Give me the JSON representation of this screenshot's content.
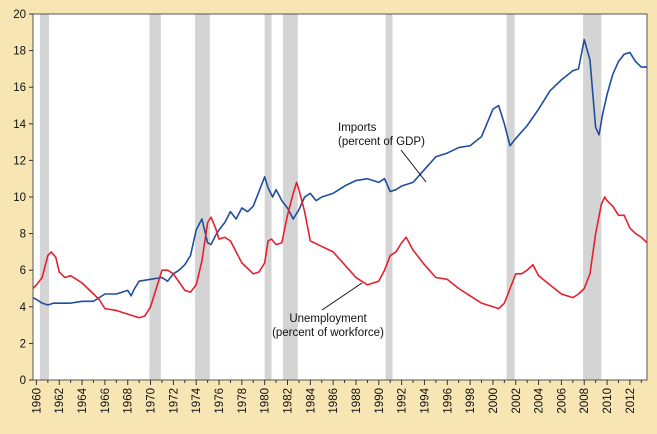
{
  "chart_data": {
    "type": "line",
    "xlim": [
      1959.7,
      2013.5
    ],
    "ylim": [
      0,
      20
    ],
    "yticks": [
      0,
      2,
      4,
      6,
      8,
      10,
      12,
      14,
      16,
      18,
      20
    ],
    "xticks": [
      "1960",
      "1962",
      "1964",
      "1966",
      "1968",
      "1970",
      "1972",
      "1974",
      "1976",
      "1978",
      "1980",
      "1982",
      "1984",
      "1986",
      "1988",
      "1990",
      "1992",
      "1994",
      "1996",
      "1998",
      "2000",
      "2002",
      "2004",
      "2006",
      "2008",
      "2010",
      "2012"
    ],
    "recessions": [
      [
        1960.3,
        1961.1
      ],
      [
        1969.9,
        1970.9
      ],
      [
        1973.9,
        1975.2
      ],
      [
        1980.0,
        1980.6
      ],
      [
        1981.6,
        1982.9
      ],
      [
        1990.6,
        1991.2
      ],
      [
        2001.2,
        2001.9
      ],
      [
        2007.9,
        2009.5
      ]
    ],
    "colors": {
      "recession": "#d4d4d4",
      "imports": "#1f4e9c",
      "unemployment": "#e3212f",
      "background": "#f7e6b4"
    },
    "annotations": {
      "imports": [
        "Imports",
        "(percent of GDP)"
      ],
      "unemployment": [
        "Unemployment",
        "(percent of workforce)"
      ]
    },
    "series": [
      {
        "key": "imports",
        "name": "Imports (percent of GDP)",
        "x": [
          1959.7,
          1960.0,
          1960.5,
          1961.0,
          1961.5,
          1962.0,
          1963.0,
          1964.0,
          1965.0,
          1966.0,
          1967.0,
          1968.0,
          1968.3,
          1968.6,
          1969.0,
          1970.0,
          1971.0,
          1971.5,
          1972.0,
          1972.5,
          1973.0,
          1973.5,
          1974.0,
          1974.5,
          1975.0,
          1975.3,
          1975.7,
          1976.0,
          1976.5,
          1977.0,
          1977.5,
          1978.0,
          1978.5,
          1979.0,
          1979.5,
          1980.0,
          1980.3,
          1980.7,
          1981.0,
          1981.5,
          1982.0,
          1982.5,
          1983.0,
          1983.5,
          1984.0,
          1984.5,
          1985.0,
          1986.0,
          1987.0,
          1988.0,
          1989.0,
          1990.0,
          1990.5,
          1991.0,
          1991.5,
          1992.0,
          1993.0,
          1994.0,
          1995.0,
          1996.0,
          1997.0,
          1998.0,
          1999.0,
          2000.0,
          2000.5,
          2001.0,
          2001.5,
          2002.0,
          2003.0,
          2004.0,
          2005.0,
          2006.0,
          2007.0,
          2007.5,
          2008.0,
          2008.5,
          2009.0,
          2009.3,
          2009.6,
          2010.0,
          2010.5,
          2011.0,
          2011.5,
          2012.0,
          2012.5,
          2013.0,
          2013.5
        ],
        "values": [
          4.5,
          4.4,
          4.2,
          4.1,
          4.2,
          4.2,
          4.2,
          4.3,
          4.3,
          4.7,
          4.7,
          4.9,
          4.6,
          5.0,
          5.4,
          5.5,
          5.6,
          5.4,
          5.8,
          6.0,
          6.3,
          6.8,
          8.2,
          8.8,
          7.5,
          7.4,
          7.9,
          8.2,
          8.6,
          9.2,
          8.8,
          9.4,
          9.2,
          9.5,
          10.3,
          11.1,
          10.5,
          10.0,
          10.4,
          9.8,
          9.4,
          8.8,
          9.3,
          10.0,
          10.2,
          9.8,
          10.0,
          10.2,
          10.6,
          10.9,
          11.0,
          10.8,
          11.0,
          10.3,
          10.4,
          10.6,
          10.8,
          11.5,
          12.2,
          12.4,
          12.7,
          12.8,
          13.3,
          14.8,
          15.0,
          14.0,
          12.8,
          13.2,
          13.9,
          14.8,
          15.8,
          16.4,
          16.9,
          17.0,
          18.6,
          17.5,
          13.8,
          13.4,
          14.5,
          15.6,
          16.7,
          17.4,
          17.8,
          17.9,
          17.4,
          17.1,
          17.1
        ]
      },
      {
        "key": "unemployment",
        "name": "Unemployment (percent of workforce)",
        "x": [
          1959.7,
          1960.0,
          1960.5,
          1961.0,
          1961.3,
          1961.7,
          1962.0,
          1962.5,
          1963.0,
          1963.5,
          1964.0,
          1964.5,
          1965.0,
          1965.5,
          1966.0,
          1967.0,
          1968.0,
          1969.0,
          1969.5,
          1970.0,
          1970.5,
          1971.0,
          1971.5,
          1972.0,
          1973.0,
          1973.5,
          1974.0,
          1974.5,
          1975.0,
          1975.3,
          1975.7,
          1976.0,
          1976.5,
          1977.0,
          1977.5,
          1978.0,
          1979.0,
          1979.5,
          1980.0,
          1980.3,
          1980.6,
          1981.0,
          1981.5,
          1982.0,
          1982.5,
          1982.8,
          1983.0,
          1983.5,
          1984.0,
          1985.0,
          1986.0,
          1987.0,
          1988.0,
          1989.0,
          1990.0,
          1990.5,
          1991.0,
          1991.5,
          1992.0,
          1992.4,
          1993.0,
          1994.0,
          1995.0,
          1996.0,
          1997.0,
          1998.0,
          1999.0,
          2000.0,
          2000.5,
          2001.0,
          2001.5,
          2002.0,
          2002.5,
          2003.0,
          2003.5,
          2004.0,
          2005.0,
          2006.0,
          2007.0,
          2007.5,
          2008.0,
          2008.5,
          2009.0,
          2009.5,
          2009.8,
          2010.0,
          2010.5,
          2011.0,
          2011.5,
          2012.0,
          2012.5,
          2013.0,
          2013.5
        ],
        "values": [
          5.0,
          5.2,
          5.6,
          6.8,
          7.0,
          6.7,
          5.9,
          5.6,
          5.7,
          5.5,
          5.3,
          5.0,
          4.7,
          4.4,
          3.9,
          3.8,
          3.6,
          3.4,
          3.5,
          4.0,
          5.0,
          6.0,
          6.0,
          5.8,
          4.9,
          4.8,
          5.2,
          6.5,
          8.6,
          8.9,
          8.3,
          7.7,
          7.8,
          7.6,
          7.0,
          6.4,
          5.8,
          5.9,
          6.4,
          7.6,
          7.7,
          7.4,
          7.5,
          9.0,
          10.2,
          10.8,
          10.4,
          9.2,
          7.6,
          7.3,
          7.0,
          6.3,
          5.6,
          5.2,
          5.4,
          6.0,
          6.8,
          7.0,
          7.5,
          7.8,
          7.1,
          6.3,
          5.6,
          5.5,
          5.0,
          4.6,
          4.2,
          4.0,
          3.9,
          4.2,
          5.0,
          5.8,
          5.8,
          6.0,
          6.3,
          5.7,
          5.2,
          4.7,
          4.5,
          4.7,
          5.0,
          5.8,
          8.0,
          9.6,
          10.0,
          9.8,
          9.5,
          9.0,
          9.0,
          8.3,
          8.0,
          7.8,
          7.5
        ]
      }
    ]
  }
}
